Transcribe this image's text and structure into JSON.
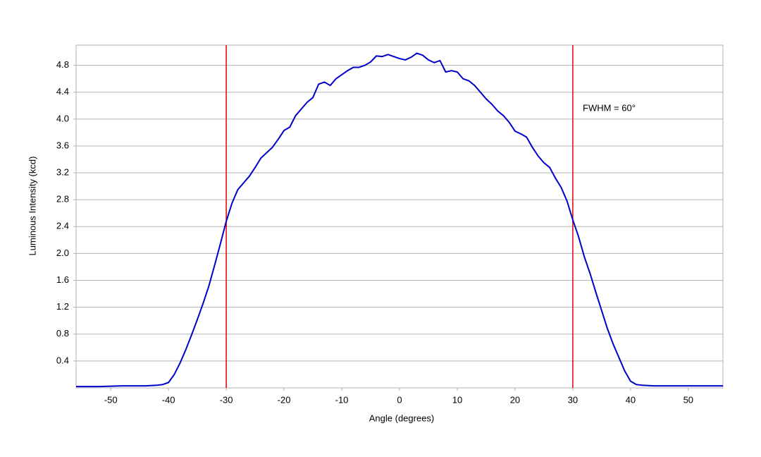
{
  "chart_data": {
    "type": "line",
    "x_label": "Angle (degrees)",
    "y_label": "Luminous Intensity (kcd)",
    "annotation": "FWHM = 60°",
    "x": [
      -56,
      -52,
      -48,
      -44,
      -42,
      -41,
      -40,
      -39,
      -38,
      -37,
      -36,
      -35,
      -34,
      -33,
      -32,
      -31,
      -30,
      -29,
      -28,
      -27,
      -26,
      -25,
      -24,
      -23,
      -22,
      -21,
      -20,
      -19,
      -18,
      -17,
      -16,
      -15,
      -14,
      -13,
      -12,
      -11,
      -10,
      -9,
      -8,
      -7,
      -6,
      -5,
      -4,
      -3,
      -2,
      -1,
      0,
      1,
      2,
      3,
      4,
      5,
      6,
      7,
      8,
      9,
      10,
      11,
      12,
      13,
      14,
      15,
      16,
      17,
      18,
      19,
      20,
      21,
      22,
      23,
      24,
      25,
      26,
      27,
      28,
      29,
      30,
      31,
      32,
      33,
      34,
      35,
      36,
      37,
      38,
      39,
      40,
      41,
      42,
      44,
      48,
      52,
      56
    ],
    "values": [
      0.02,
      0.02,
      0.03,
      0.03,
      0.04,
      0.05,
      0.08,
      0.2,
      0.37,
      0.57,
      0.79,
      1.02,
      1.26,
      1.52,
      1.83,
      2.15,
      2.48,
      2.75,
      2.95,
      3.05,
      3.15,
      3.28,
      3.42,
      3.5,
      3.58,
      3.7,
      3.83,
      3.88,
      4.05,
      4.15,
      4.25,
      4.32,
      4.52,
      4.55,
      4.5,
      4.6,
      4.66,
      4.72,
      4.77,
      4.77,
      4.8,
      4.85,
      4.94,
      4.93,
      4.96,
      4.93,
      4.9,
      4.88,
      4.92,
      4.98,
      4.95,
      4.88,
      4.84,
      4.87,
      4.7,
      4.72,
      4.7,
      4.6,
      4.57,
      4.5,
      4.4,
      4.3,
      4.22,
      4.12,
      4.05,
      3.95,
      3.82,
      3.78,
      3.73,
      3.58,
      3.45,
      3.35,
      3.28,
      3.12,
      2.98,
      2.78,
      2.5,
      2.25,
      1.95,
      1.7,
      1.42,
      1.15,
      0.88,
      0.65,
      0.45,
      0.25,
      0.1,
      0.05,
      0.04,
      0.03,
      0.03,
      0.03,
      0.03
    ],
    "color": "#0000cc",
    "vlines": [
      -30,
      30
    ],
    "vline_color": "#dd0000",
    "xlim": [
      -56,
      56
    ],
    "xticks": [
      -50,
      -40,
      -30,
      -20,
      -10,
      0,
      10,
      20,
      30,
      40,
      50
    ],
    "ylim": [
      0,
      5.1
    ],
    "yticks": [
      0.4,
      0.8,
      1.2,
      1.6,
      {
        "value": 2,
        "label": "2.0"
      },
      2.4,
      2.8,
      3.2,
      3.6,
      {
        "value": 4,
        "label": "4.0"
      },
      4.4,
      4.8
    ],
    "grid": true
  }
}
